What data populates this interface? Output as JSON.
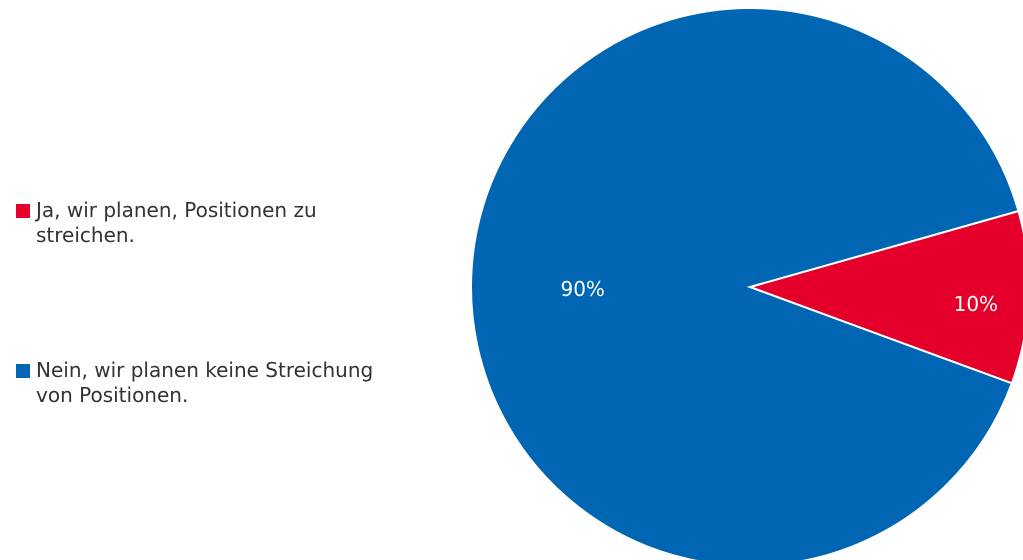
{
  "chart_data": {
    "type": "pie",
    "categories": [
      "Ja, wir planen, Positionen zu streichen.",
      "Nein, wir planen keine Streichung von Positionen."
    ],
    "values": [
      10,
      90
    ],
    "value_labels": [
      "10%",
      "90%"
    ],
    "colors": [
      "#e4002b",
      "#0066b3"
    ],
    "legend": "left"
  }
}
